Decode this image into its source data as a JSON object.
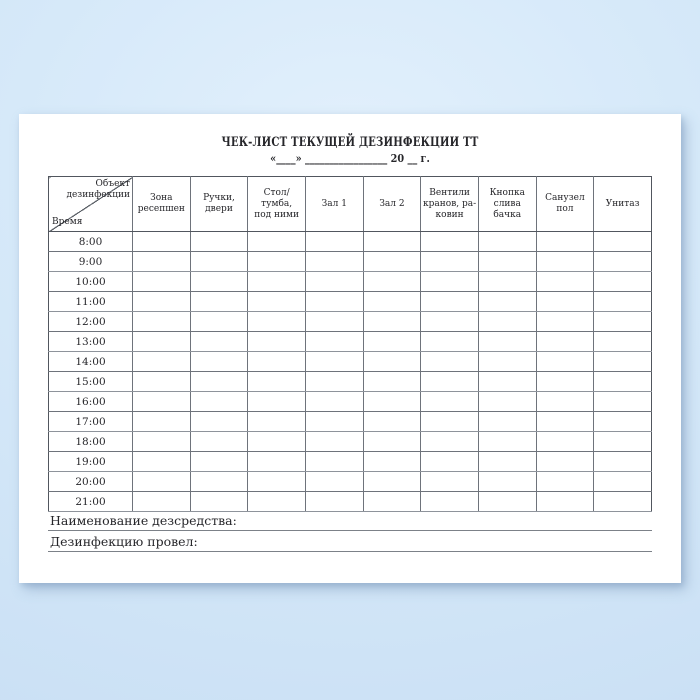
{
  "document": {
    "title": "ЧЕК-ЛИСТ ТЕКУЩЕЙ ДЕЗИНФЕКЦИИ ТТ",
    "date_line": "«____» _________________ 20 __ г."
  },
  "table": {
    "corner_top": "Объект\nдезинфекции",
    "corner_bottom": "Время",
    "columns": [
      "Зона\nресепшен",
      "Ручки, двери",
      "Стол/тумба,\nпод ними",
      "Зал 1",
      "Зал 2",
      "Вентили\nкранов, ра-\nковин",
      "Кнопка\nслива бачка",
      "Санузел\nпол",
      "Унитаз"
    ],
    "times": [
      "8:00",
      "9:00",
      "10:00",
      "11:00",
      "12:00",
      "13:00",
      "14:00",
      "15:00",
      "16:00",
      "17:00",
      "18:00",
      "19:00",
      "20:00",
      "21:00"
    ]
  },
  "footer": {
    "disinfectant_label": "Наименование дезсредства:",
    "performed_by_label": "Дезинфекцию провел:"
  },
  "colors": {
    "background": "#d6e9f9",
    "paper": "#ffffff",
    "grid_line": "#6e737b",
    "frame_line": "#51565e",
    "text": "#26262a"
  }
}
